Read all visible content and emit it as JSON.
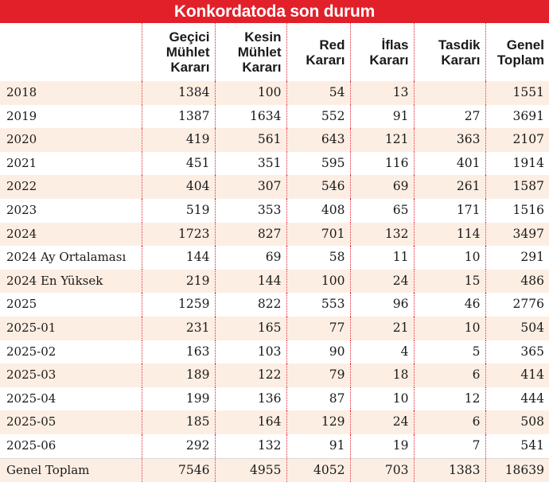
{
  "title": "Konkordatoda son durum",
  "columns": [
    "",
    "Geçici Mühlet Kararı",
    "Kesin Mühlet Kararı",
    "Red Kararı",
    "İflas Kararı",
    "Tasdik Kararı",
    "Genel Toplam"
  ],
  "rows": [
    [
      "2018",
      "1384",
      "100",
      "54",
      "13",
      "",
      "1551"
    ],
    [
      "2019",
      "1387",
      "1634",
      "552",
      "91",
      "27",
      "3691"
    ],
    [
      "2020",
      "419",
      "561",
      "643",
      "121",
      "363",
      "2107"
    ],
    [
      "2021",
      "451",
      "351",
      "595",
      "116",
      "401",
      "1914"
    ],
    [
      "2022",
      "404",
      "307",
      "546",
      "69",
      "261",
      "1587"
    ],
    [
      "2023",
      "519",
      "353",
      "408",
      "65",
      "171",
      "1516"
    ],
    [
      "2024",
      "1723",
      "827",
      "701",
      "132",
      "114",
      "3497"
    ],
    [
      "2024 Ay Ortalaması",
      "144",
      "69",
      "58",
      "11",
      "10",
      "291"
    ],
    [
      "2024 En Yüksek",
      "219",
      "144",
      "100",
      "24",
      "15",
      "486"
    ],
    [
      "2025",
      "1259",
      "822",
      "553",
      "96",
      "46",
      "2776"
    ],
    [
      "2025-01",
      "231",
      "165",
      "77",
      "21",
      "10",
      "504"
    ],
    [
      "2025-02",
      "163",
      "103",
      "90",
      "4",
      "5",
      "365"
    ],
    [
      "2025-03",
      "189",
      "122",
      "79",
      "18",
      "6",
      "414"
    ],
    [
      "2025-04",
      "199",
      "136",
      "87",
      "10",
      "12",
      "444"
    ],
    [
      "2025-05",
      "185",
      "164",
      "129",
      "24",
      "6",
      "508"
    ],
    [
      "2025-06",
      "292",
      "132",
      "91",
      "19",
      "7",
      "541"
    ],
    [
      "Genel Toplam",
      "7546",
      "4955",
      "4052",
      "703",
      "1383",
      "18639"
    ]
  ],
  "colors": {
    "title_bg": "#e2202a",
    "row_stripe": "#fdeee3",
    "separator": "#e2202a"
  }
}
